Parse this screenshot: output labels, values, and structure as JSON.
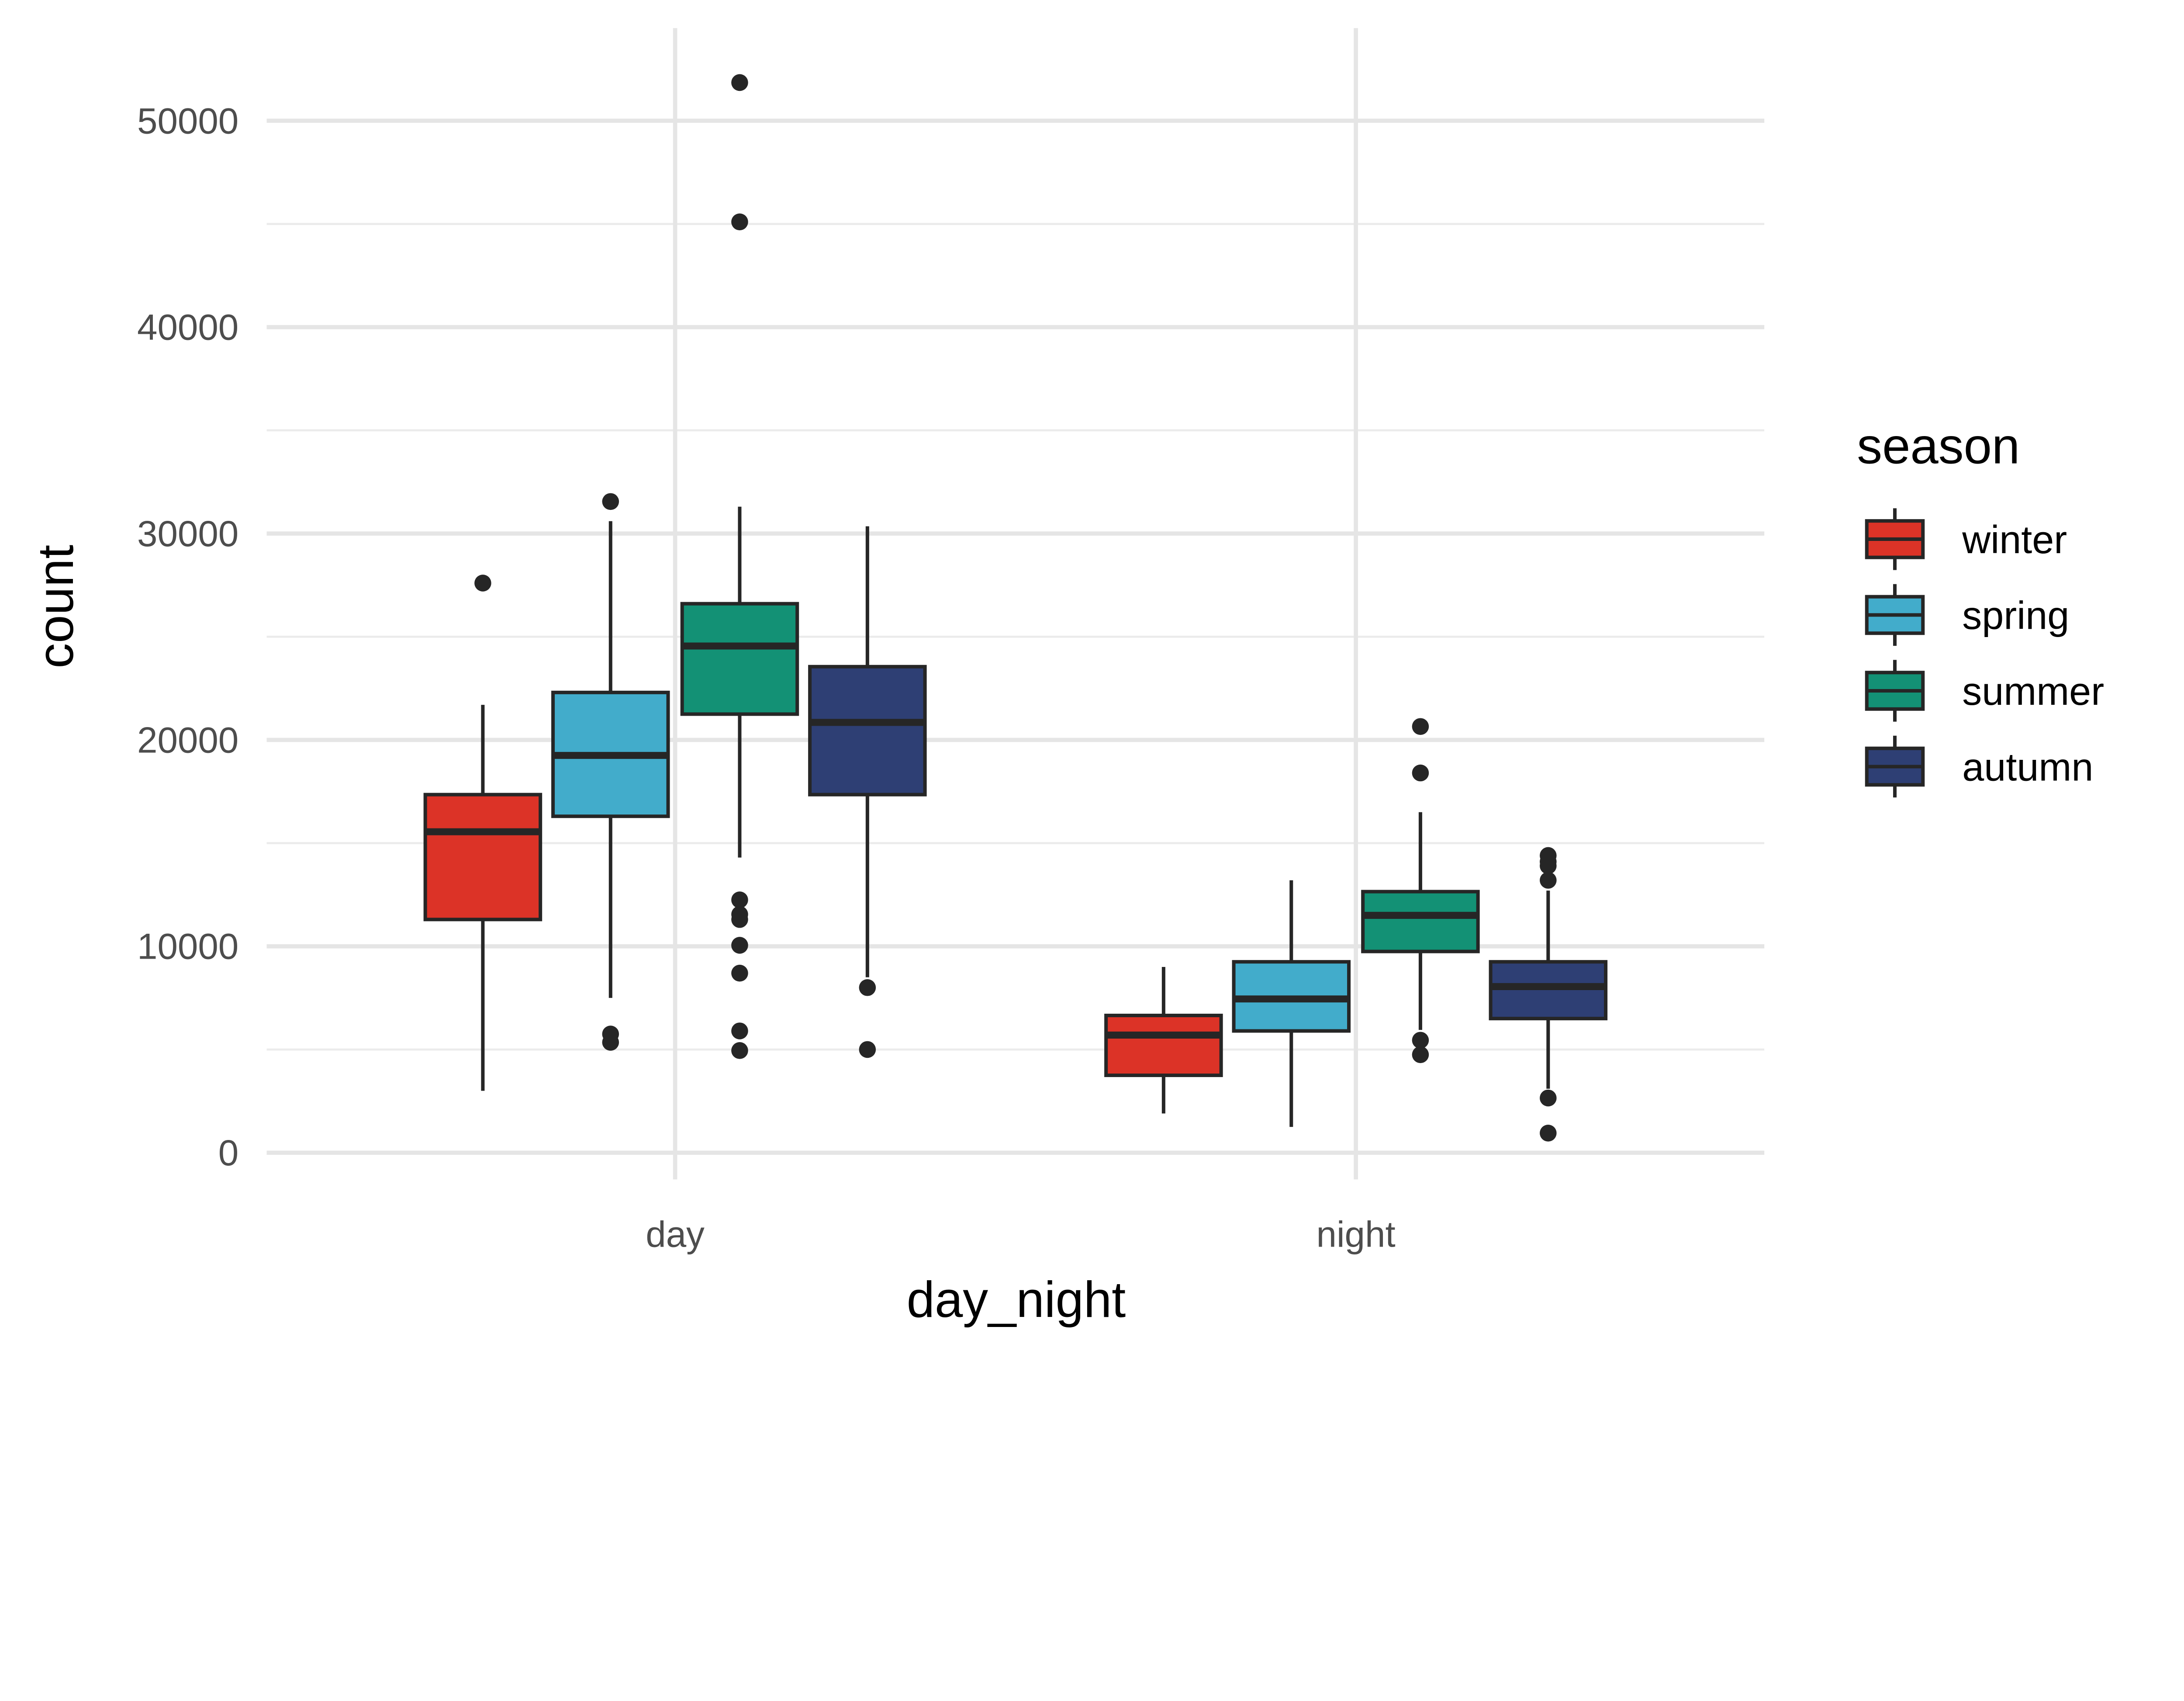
{
  "chart_data": {
    "type": "boxplot",
    "xlabel": "day_night",
    "ylabel": "count",
    "categories": [
      "day",
      "night"
    ],
    "ylim": [
      -2000,
      55000
    ],
    "yticks": [
      0,
      10000,
      20000,
      30000,
      40000,
      50000
    ],
    "grid": true,
    "legend": {
      "title": "season",
      "placement": "right"
    },
    "series": [
      {
        "name": "winter",
        "color": "#DC3327",
        "boxes": [
          {
            "category": "day",
            "whisker_low": 3000,
            "q1": 11300,
            "median": 15550,
            "q3": 17350,
            "whisker_high": 21700,
            "outliers": [
              27600
            ]
          },
          {
            "category": "night",
            "whisker_low": 1900,
            "q1": 3750,
            "median": 5700,
            "q3": 6650,
            "whisker_high": 9000,
            "outliers": []
          }
        ]
      },
      {
        "name": "spring",
        "color": "#42ACCB",
        "boxes": [
          {
            "category": "day",
            "whisker_low": 7500,
            "q1": 16300,
            "median": 19250,
            "q3": 22300,
            "whisker_high": 30600,
            "outliers": [
              31550,
              5750,
              5350
            ]
          },
          {
            "category": "night",
            "whisker_low": 1250,
            "q1": 5900,
            "median": 7450,
            "q3": 9250,
            "whisker_high": 13200,
            "outliers": []
          }
        ]
      },
      {
        "name": "summer",
        "color": "#139175",
        "boxes": [
          {
            "category": "day",
            "whisker_low": 14300,
            "q1": 21250,
            "median": 24550,
            "q3": 26600,
            "whisker_high": 31300,
            "outliers": [
              51850,
              45100,
              12250,
              11550,
              11300,
              10050,
              8700,
              5900,
              4950
            ]
          },
          {
            "category": "night",
            "whisker_low": 5950,
            "q1": 9750,
            "median": 11500,
            "q3": 12650,
            "whisker_high": 16500,
            "outliers": [
              20650,
              18400,
              5450,
              4750
            ]
          }
        ]
      },
      {
        "name": "autumn",
        "color": "#2E3F74",
        "boxes": [
          {
            "category": "day",
            "whisker_low": 8500,
            "q1": 17350,
            "median": 20850,
            "q3": 23550,
            "whisker_high": 30350,
            "outliers": [
              8000,
              5000
            ]
          },
          {
            "category": "night",
            "whisker_low": 3100,
            "q1": 6500,
            "median": 8050,
            "q3": 9250,
            "whisker_high": 12700,
            "outliers": [
              14400,
              14100,
              13900,
              13200,
              2650,
              950
            ]
          }
        ]
      }
    ]
  }
}
